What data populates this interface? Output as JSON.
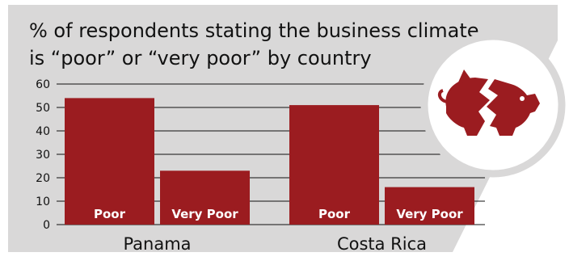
{
  "chart_data": {
    "type": "bar",
    "title_lines": [
      "% of respondents stating the business climate",
      "is “poor” or “very poor” by country"
    ],
    "categories": [
      "Panama",
      "Costa Rica"
    ],
    "series": [
      {
        "name": "Poor",
        "values": [
          54,
          51
        ]
      },
      {
        "name": "Very Poor",
        "values": [
          23,
          16
        ]
      }
    ],
    "y_ticks": [
      0,
      10,
      20,
      30,
      40,
      50,
      60
    ],
    "ylim": [
      0,
      60
    ],
    "grid": true,
    "xlabel": "",
    "ylabel": ""
  },
  "icon": {
    "name": "broken-piggy-bank-icon"
  },
  "colors": {
    "bar": "#9b1c20",
    "panel": "#d9d8d8",
    "icon_circle_border": "#d9d8d8",
    "icon_circle_fill": "#ffffff"
  }
}
